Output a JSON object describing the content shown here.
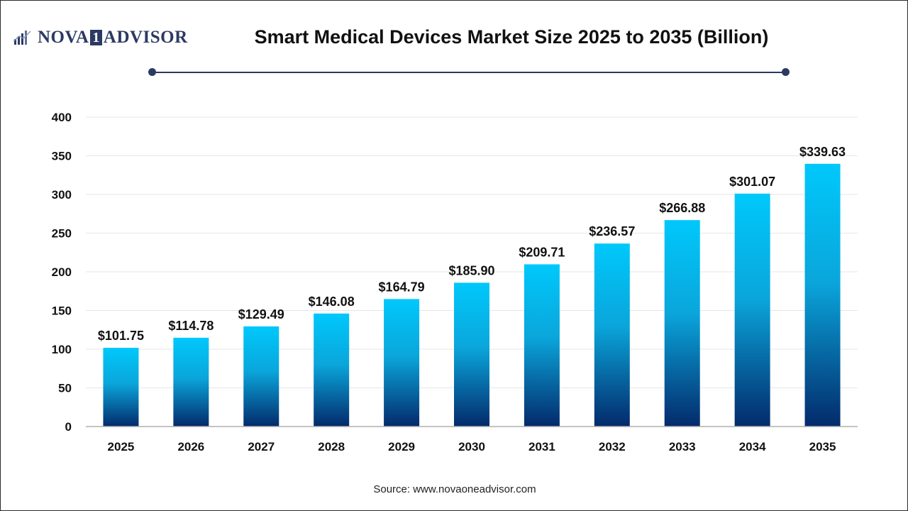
{
  "brand": {
    "name_part1": "NOVA",
    "name_part2": "1",
    "name_part3": "ADVISOR",
    "logo_icon": "bar-chart-logo-icon",
    "color": "#2c3a63"
  },
  "title": "Smart Medical Devices Market Size 2025 to 2035 (Billion)",
  "source": "Source: www.novaoneadvisor.com",
  "colors": {
    "bar_top": "#00c8fb",
    "bar_bottom": "#032a6b",
    "grid": "#e6e6e6",
    "axis": "#b0b0b0",
    "accent": "#2c3a63"
  },
  "chart_data": {
    "type": "bar",
    "categories": [
      "2025",
      "2026",
      "2027",
      "2028",
      "2029",
      "2030",
      "2031",
      "2032",
      "2033",
      "2034",
      "2035"
    ],
    "values": [
      101.75,
      114.78,
      129.49,
      146.08,
      164.79,
      185.9,
      209.71,
      236.57,
      266.88,
      301.07,
      339.63
    ],
    "value_labels": [
      "$101.75",
      "$114.78",
      "$129.49",
      "$146.08",
      "$164.79",
      "$185.90",
      "$209.71",
      "$236.57",
      "$266.88",
      "$301.07",
      "$339.63"
    ],
    "title": "Smart Medical Devices Market Size 2025 to 2035 (Billion)",
    "xlabel": "",
    "ylabel": "",
    "ylim": [
      0,
      400
    ],
    "yticks": [
      0,
      50,
      100,
      150,
      200,
      250,
      300,
      350,
      400
    ],
    "grid": true,
    "legend": "none"
  }
}
